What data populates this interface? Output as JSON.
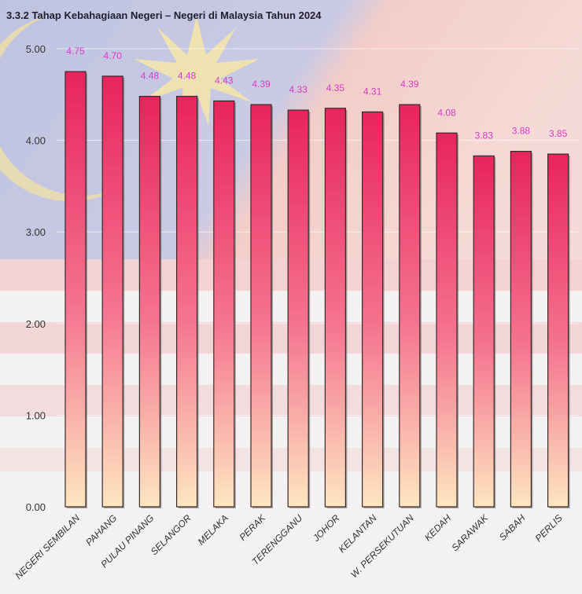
{
  "chart_data": {
    "type": "bar",
    "title": "3.3.2 Tahap Kebahagiaan Negeri – Negeri di Malaysia Tahun 2024",
    "xlabel": "",
    "ylabel": "",
    "ylim": [
      0,
      5
    ],
    "yticks": [
      "0.00",
      "1.00",
      "2.00",
      "3.00",
      "4.00",
      "5.00"
    ],
    "grid": true,
    "categories": [
      "NEGERI SEMBILAN",
      "PAHANG",
      "PULAU PINANG",
      "SELANGOR",
      "MELAKA",
      "PERAK",
      "TERENGGANU",
      "JOHOR",
      "KELANTAN",
      "W. PERSEKUTUAN",
      "KEDAH",
      "SARAWAK",
      "SABAH",
      "PERLIS"
    ],
    "values": [
      4.75,
      4.7,
      4.48,
      4.48,
      4.43,
      4.39,
      4.33,
      4.35,
      4.31,
      4.39,
      4.08,
      3.83,
      3.88,
      3.85
    ],
    "data_labels": [
      "4.75",
      "4.70",
      "4.48",
      "4.48",
      "4.43",
      "4.39",
      "4.33",
      "4.35",
      "4.31",
      "4.39",
      "4.08",
      "3.83",
      "3.88",
      "3.85"
    ],
    "colors": {
      "bar_top": "#e8245e",
      "bar_bottom": "#fde6c0",
      "label": "#d63cc4"
    }
  }
}
